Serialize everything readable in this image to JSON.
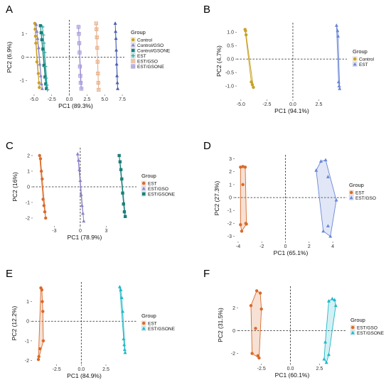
{
  "colors": {
    "Control": "#c9a227",
    "Control/GSO": "#8c82c8",
    "Control/GSONE": "#1b7f7a",
    "EST": "#d96a2a",
    "EST/GSO": "#6a86d6",
    "EST/GSONE": "#20b8c8",
    "EST (panel A)": "#2fa7a0",
    "EST/GSO (panel A)": "#e8b08a",
    "EST/GSONE (panel A)": "#9d8fd6"
  },
  "chart_data": [
    {
      "id": "A",
      "letter": "A",
      "type": "scatter",
      "xlabel": "PC1 (89.3%)",
      "ylabel": "PC2 (6.9%)",
      "xlim": [
        -6,
        7.8
      ],
      "ylim": [
        -1.6,
        1.6
      ],
      "xticks": [
        -5.0,
        -2.5,
        0.0,
        2.5,
        5.0,
        7.5
      ],
      "xtick_labels": [
        "-5.0",
        "-2.5",
        "0.0",
        "2.5",
        "5.0",
        "7.5"
      ],
      "yticks": [
        -1,
        0,
        1
      ],
      "ytick_labels": [
        "-1",
        "0",
        "1"
      ],
      "legend_title": "Group",
      "series": [
        {
          "name": "Control",
          "color": "#c9a227",
          "shape": "circle",
          "x": [
            -4.9,
            -4.85,
            -4.8,
            -4.75,
            -4.6,
            -4.4,
            -4.3,
            -4.25
          ],
          "y": [
            1.45,
            1.2,
            0.9,
            0.6,
            -0.2,
            -0.7,
            -1.1,
            -1.3
          ]
        },
        {
          "name": "Control/GSO",
          "color": "#8c82c8",
          "shape": "triangle",
          "x": [
            -4.7,
            -4.6,
            -4.5,
            -4.35,
            -4.2,
            -4.05,
            -3.95,
            -3.85
          ],
          "y": [
            1.4,
            1.1,
            0.8,
            0.4,
            -0.3,
            -0.8,
            -1.15,
            -1.35
          ]
        },
        {
          "name": "Control/GSONE",
          "color": "#1b7f7a",
          "shape": "square",
          "x": [
            -4.1,
            -4.0,
            -3.9,
            -3.75,
            -3.6,
            -3.45,
            -3.35,
            -3.25
          ],
          "y": [
            1.35,
            1.05,
            0.75,
            0.35,
            -0.35,
            -0.85,
            -1.15,
            -1.35
          ]
        },
        {
          "name": "EST",
          "color": "#2fa7a0",
          "shape": "plus",
          "x": [
            -3.8,
            -3.7,
            -3.6,
            -3.5,
            -3.4,
            -3.3,
            -3.2,
            -3.1
          ],
          "y": [
            1.3,
            0.95,
            0.6,
            0.2,
            -0.4,
            -0.9,
            -1.2,
            -1.4
          ]
        },
        {
          "name": "EST/GSO",
          "color": "#e8b08a",
          "shape": "squarex",
          "x": [
            3.8,
            3.85,
            3.9,
            3.95,
            4.0,
            4.05,
            4.1,
            4.15
          ],
          "y": [
            1.45,
            1.2,
            0.85,
            0.4,
            -0.2,
            -0.7,
            -1.1,
            -1.4
          ]
        },
        {
          "name": "EST/GSONE",
          "color": "#9d8fd6",
          "shape": "squareplus",
          "x": [
            1.3,
            1.35,
            1.4,
            1.45,
            1.5,
            1.55,
            1.6,
            1.7
          ],
          "y": [
            1.3,
            1.0,
            0.6,
            0.2,
            -0.4,
            -0.8,
            -1.1,
            -1.35
          ]
        },
        {
          "name": "",
          "color": "#4a5fb0",
          "shape": "triangle",
          "legend": false,
          "x": [
            6.5,
            6.55,
            6.6,
            6.65,
            6.7,
            6.75,
            6.8,
            6.85
          ],
          "y": [
            1.45,
            1.1,
            0.8,
            0.3,
            -0.3,
            -0.8,
            -1.1,
            -1.35
          ]
        }
      ]
    },
    {
      "id": "B",
      "letter": "B",
      "type": "scatter",
      "xlabel": "PC1 (94.1%)",
      "ylabel": "PC2 (4.7%)",
      "xlim": [
        -5.4,
        5.2
      ],
      "ylim": [
        -1.5,
        1.35
      ],
      "xticks": [
        -5.0,
        -2.5,
        0.0,
        2.5
      ],
      "xtick_labels": [
        "-5.0",
        "-2.5",
        "0.0",
        "2.5"
      ],
      "yticks": [
        -1.0,
        -0.5,
        0.0,
        0.5,
        1.0
      ],
      "ytick_labels": [
        "-1.0",
        "-0.5",
        "0.0",
        "0.5",
        "1.0"
      ],
      "legend_title": "Group",
      "series": [
        {
          "name": "Control",
          "color": "#c9a227",
          "shape": "circle",
          "x": [
            -4.6,
            -4.55,
            -4.5,
            -4.0,
            -3.9,
            -3.8
          ],
          "y": [
            1.1,
            1.05,
            0.9,
            -0.85,
            -0.95,
            -1.05
          ]
        },
        {
          "name": "EST",
          "color": "#6a86d6",
          "shape": "triangle",
          "x": [
            4.2,
            4.3,
            4.35,
            4.4,
            4.45,
            4.5
          ],
          "y": [
            1.25,
            1.05,
            0.85,
            -0.85,
            -1.0,
            -1.1
          ]
        }
      ]
    },
    {
      "id": "C",
      "letter": "C",
      "type": "scatter",
      "xlabel": "PC1 (78.9%)",
      "ylabel": "PC2 (16%)",
      "xlim": [
        -5.5,
        6.5
      ],
      "ylim": [
        -2.5,
        2.5
      ],
      "xticks": [
        -3,
        0,
        3
      ],
      "xtick_labels": [
        "-3",
        "0",
        "3"
      ],
      "yticks": [
        -2,
        -1,
        0,
        1,
        2
      ],
      "ytick_labels": [
        "-2",
        "-1",
        "0",
        "1",
        "2"
      ],
      "legend_title": "Group",
      "series": [
        {
          "name": "EST",
          "color": "#d96a2a",
          "shape": "circle",
          "x": [
            -4.7,
            -4.6,
            -4.5,
            -4.4,
            -4.3,
            -4.2,
            -4.1,
            -4.0
          ],
          "y": [
            2.0,
            1.8,
            1.0,
            0.5,
            -0.8,
            -1.2,
            -1.6,
            -2.0
          ]
        },
        {
          "name": "EST/GSO",
          "color": "#8c82c8",
          "shape": "triangle",
          "x": [
            -0.3,
            -0.2,
            -0.1,
            0.0,
            0.1,
            0.2,
            0.3,
            0.4
          ],
          "y": [
            2.1,
            1.7,
            1.1,
            0.4,
            -0.5,
            -1.2,
            -1.7,
            -2.2
          ]
        },
        {
          "name": "EST/GSONE",
          "color": "#1b7f7a",
          "shape": "square",
          "x": [
            4.5,
            4.6,
            4.7,
            4.8,
            4.9,
            5.0,
            5.1,
            5.2
          ],
          "y": [
            2.0,
            1.6,
            1.1,
            0.5,
            -0.4,
            -1.1,
            -1.6,
            -1.9
          ]
        }
      ]
    },
    {
      "id": "D",
      "letter": "D",
      "type": "scatter",
      "xlabel": "PC1 (65.1%)",
      "ylabel": "PC2 (27.3%)",
      "xlim": [
        -4.3,
        5.2
      ],
      "ylim": [
        -3.4,
        3.3
      ],
      "xticks": [
        -4,
        -2,
        0,
        2,
        4
      ],
      "xtick_labels": [
        "-4",
        "-2",
        "0",
        "2",
        "4"
      ],
      "yticks": [
        -3,
        -2,
        -1,
        0,
        1,
        2,
        3
      ],
      "ytick_labels": [
        "-3",
        "-2",
        "-1",
        "0",
        "1",
        "2",
        "3"
      ],
      "legend_title": "Group",
      "series": [
        {
          "name": "EST",
          "color": "#d96a2a",
          "shape": "circle",
          "x": [
            -3.8,
            -3.6,
            -3.4,
            -3.35,
            -3.7,
            -3.8,
            -3.3,
            -3.6
          ],
          "y": [
            2.35,
            2.4,
            2.35,
            -2.0,
            -2.6,
            -2.1,
            -2.05,
            1.0
          ]
        },
        {
          "name": "EST/GSO",
          "color": "#6a86d6",
          "shape": "triangle",
          "x": [
            2.6,
            3.0,
            3.4,
            3.6,
            4.3,
            3.6,
            3.2,
            3.8
          ],
          "y": [
            2.1,
            2.8,
            2.9,
            1.6,
            -0.2,
            -2.2,
            -2.6,
            -3.0
          ]
        }
      ]
    },
    {
      "id": "E",
      "letter": "E",
      "type": "scatter",
      "xlabel": "PC1 (84.9%)",
      "ylabel": "PC2 (12.2%)",
      "xlim": [
        -5.0,
        5.6
      ],
      "ylim": [
        -2.2,
        2.0
      ],
      "xticks": [
        -2.5,
        0.0,
        2.5
      ],
      "xtick_labels": [
        "-2.5",
        "0.0",
        "2.5"
      ],
      "yticks": [
        -2,
        -1,
        0,
        1
      ],
      "ytick_labels": [
        "-2",
        "-1",
        "0",
        "1"
      ],
      "legend_title": "Group",
      "series": [
        {
          "name": "EST",
          "color": "#d96a2a",
          "shape": "circle",
          "x": [
            -4.1,
            -4.0,
            -3.95,
            -3.9,
            -3.85,
            -4.2,
            -4.3,
            -4.35
          ],
          "y": [
            1.7,
            1.6,
            1.0,
            0.5,
            -1.0,
            -1.4,
            -1.8,
            -1.95
          ]
        },
        {
          "name": "EST/GSONE",
          "color": "#20b8c8",
          "shape": "triangle",
          "x": [
            3.9,
            4.0,
            4.1,
            4.2,
            4.3,
            4.35,
            4.4,
            4.45
          ],
          "y": [
            1.75,
            1.6,
            1.2,
            0.5,
            -0.9,
            -1.2,
            -1.45,
            -1.6
          ]
        }
      ]
    },
    {
      "id": "F",
      "letter": "F",
      "type": "scatter",
      "xlabel": "PC1 (60.1%)",
      "ylabel": "PC2 (31.5%)",
      "xlim": [
        -4.5,
        4.8
      ],
      "ylim": [
        -2.9,
        3.9
      ],
      "xticks": [
        -2.5,
        0.0,
        2.5
      ],
      "xtick_labels": [
        "-2.5",
        "0.0",
        "2.5"
      ],
      "yticks": [
        -2,
        0,
        2
      ],
      "ytick_labels": [
        "-2",
        "0",
        "2"
      ],
      "legend_title": "Group",
      "series": [
        {
          "name": "EST/GSO",
          "color": "#d96a2a",
          "shape": "circle",
          "x": [
            -2.9,
            -2.6,
            -2.5,
            -3.4,
            -3.3,
            -2.8,
            -2.7,
            -3.0
          ],
          "y": [
            3.5,
            3.3,
            1.9,
            2.2,
            -2.0,
            -2.2,
            -2.4,
            0.2
          ]
        },
        {
          "name": "EST/GSONE",
          "color": "#20b8c8",
          "shape": "triangle",
          "x": [
            3.3,
            3.6,
            3.8,
            3.9,
            2.9,
            3.1,
            3.3,
            3.0
          ],
          "y": [
            2.6,
            2.8,
            2.7,
            2.2,
            -2.5,
            -2.8,
            -2.1,
            -1.0
          ]
        }
      ]
    }
  ]
}
